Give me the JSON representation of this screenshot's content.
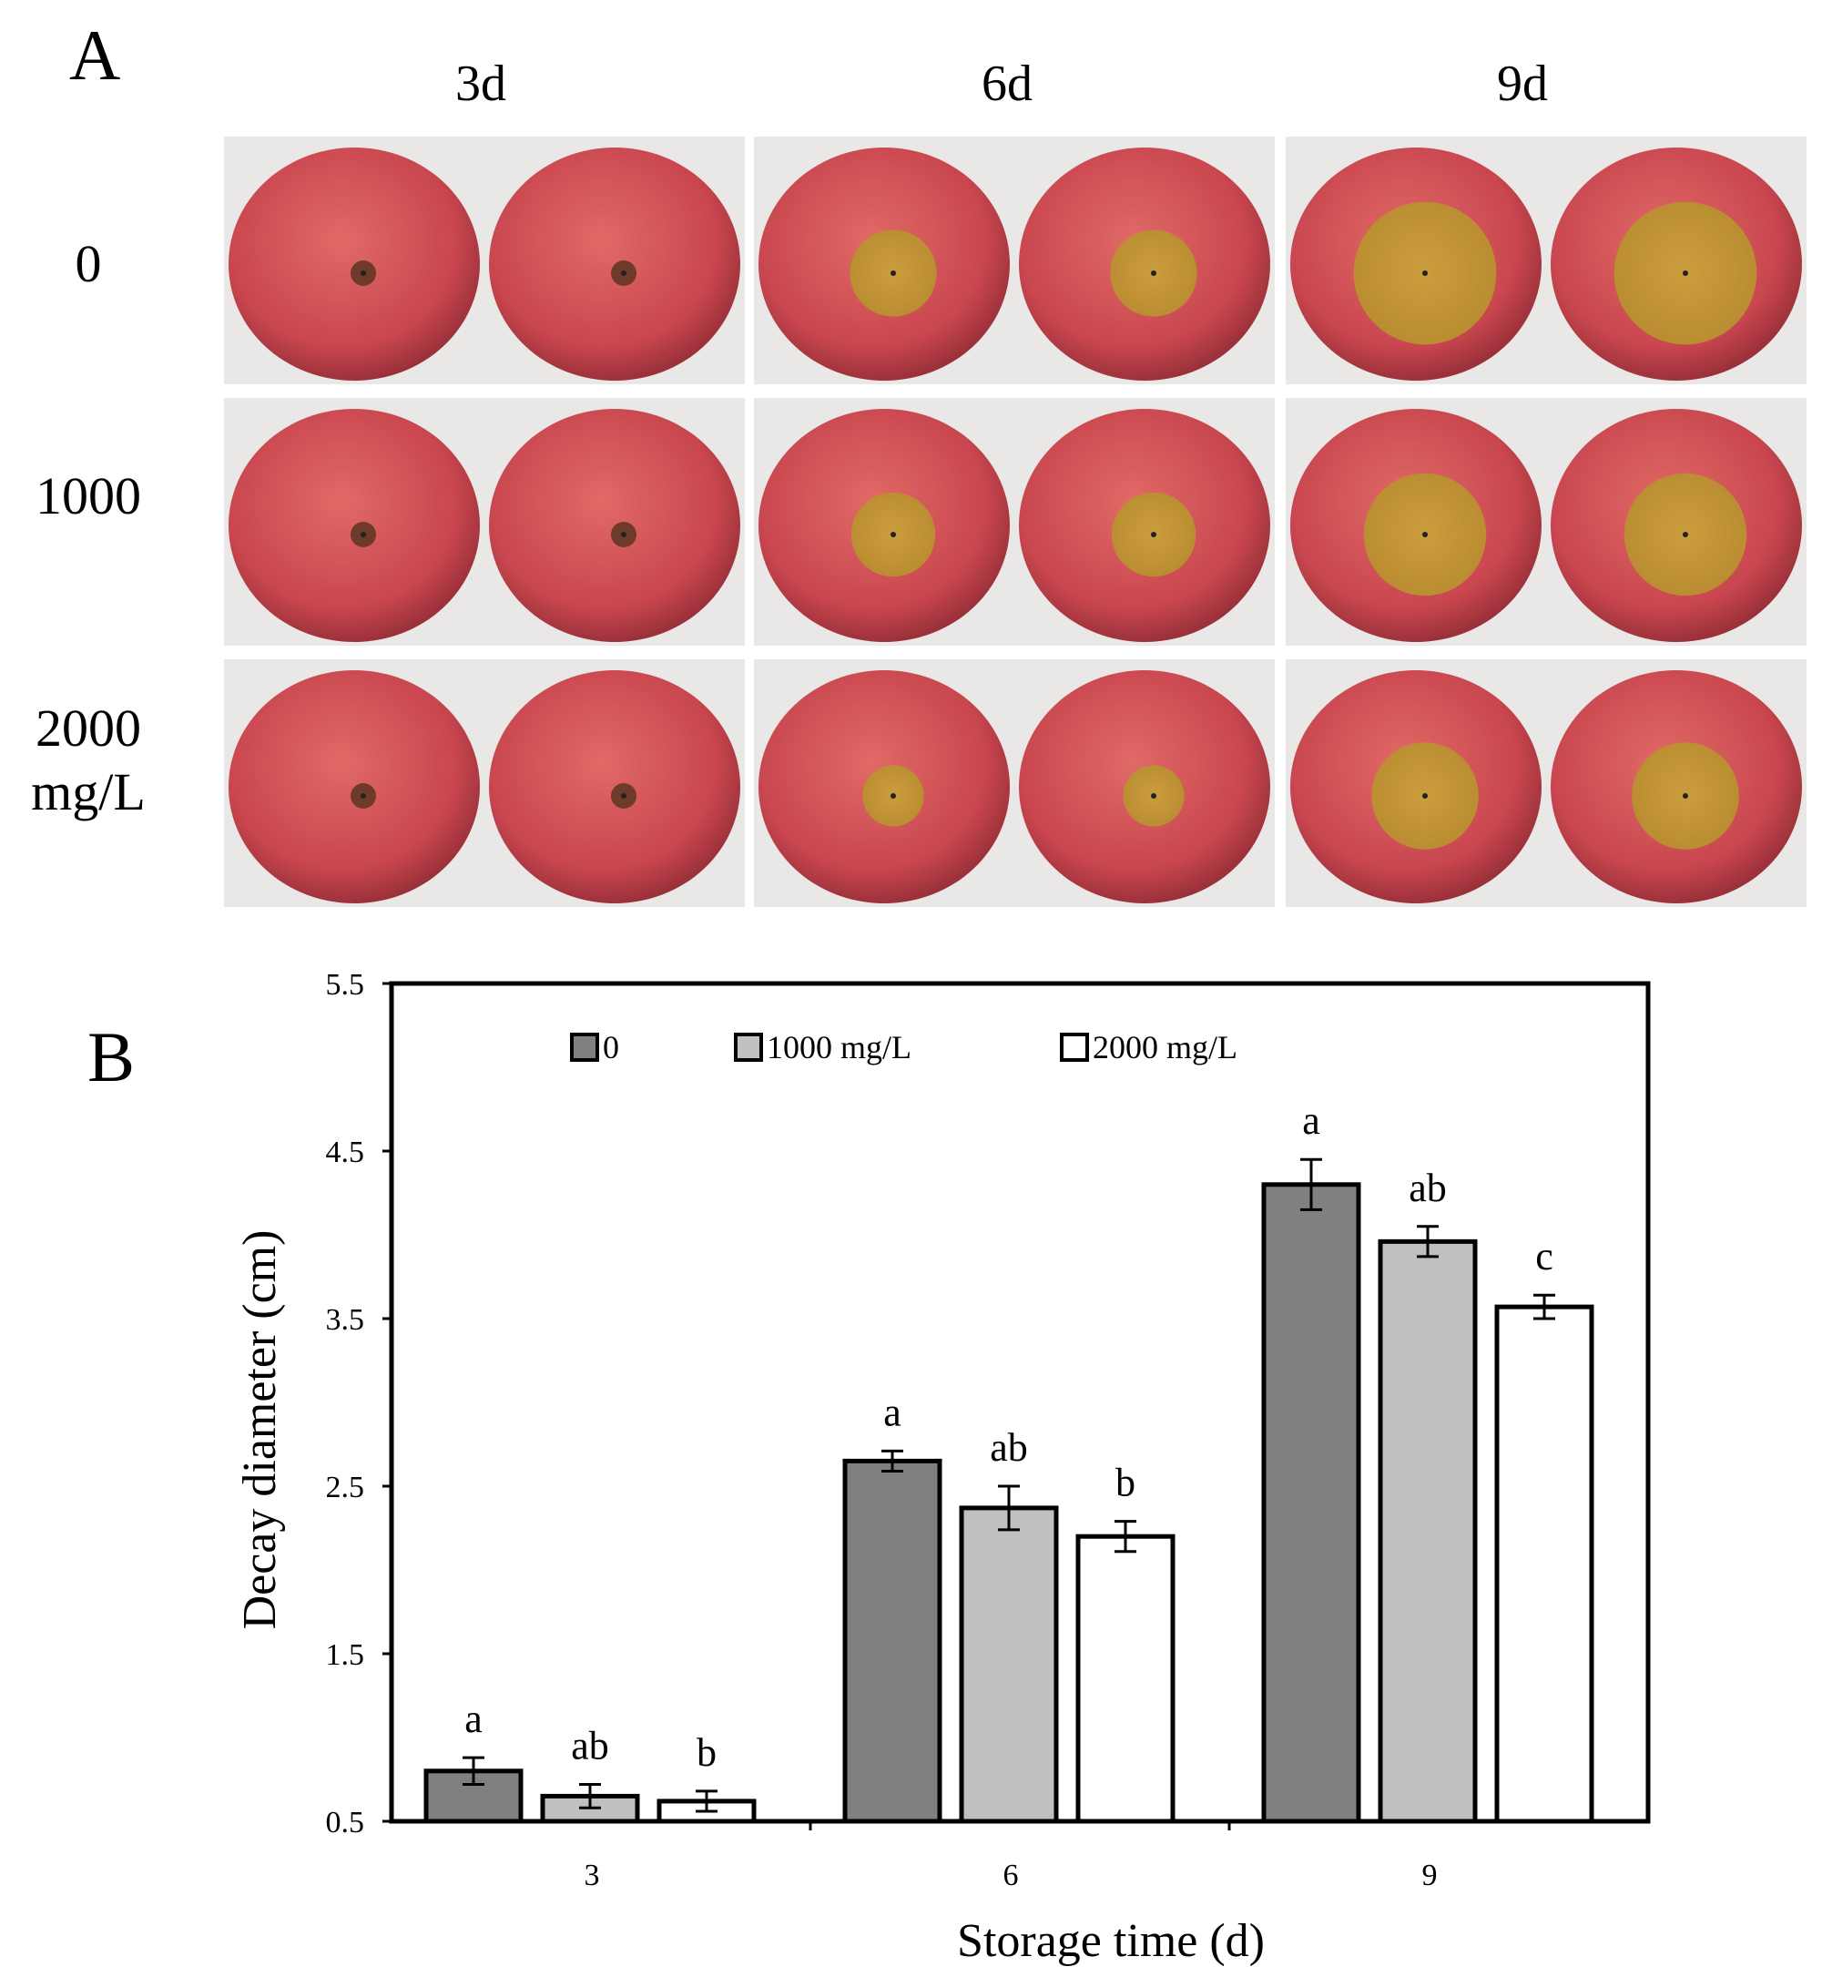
{
  "panel_a": {
    "letter": "A",
    "columns": [
      "3d",
      "6d",
      "9d"
    ],
    "rows": [
      {
        "label_lines": [
          "0"
        ]
      },
      {
        "label_lines": [
          "1000"
        ]
      },
      {
        "label_lines": [
          "2000",
          "mg/L"
        ]
      }
    ]
  },
  "panel_b": {
    "letter": "B"
  },
  "colors": {
    "bar_0": "#808080",
    "bar_1000": "#c0c0c0",
    "bar_2000": "#ffffff",
    "apple_skin": "#c9464f",
    "lesion": "#b8912e"
  },
  "chart_data": {
    "type": "bar",
    "categories": [
      "3",
      "6",
      "9"
    ],
    "xlabel": "Storage time (d)",
    "ylabel": "Decay diameter (cm)",
    "ylim": [
      0.5,
      5.5
    ],
    "yticks": [
      "0.5",
      "1.5",
      "2.5",
      "3.5",
      "4.5",
      "5.5"
    ],
    "legend_position": "top-center",
    "series": [
      {
        "name": "0",
        "values": [
          0.8,
          2.65,
          4.3
        ],
        "errors": [
          0.08,
          0.06,
          0.15
        ],
        "letters": [
          "a",
          "a",
          "a"
        ]
      },
      {
        "name": "1000 mg/L",
        "values": [
          0.65,
          2.37,
          3.96
        ],
        "errors": [
          0.07,
          0.13,
          0.09
        ],
        "letters": [
          "ab",
          "ab",
          "ab"
        ]
      },
      {
        "name": "2000 mg/L",
        "values": [
          0.62,
          2.2,
          3.57
        ],
        "errors": [
          0.06,
          0.09,
          0.07
        ],
        "letters": [
          "b",
          "b",
          "c"
        ]
      }
    ]
  }
}
